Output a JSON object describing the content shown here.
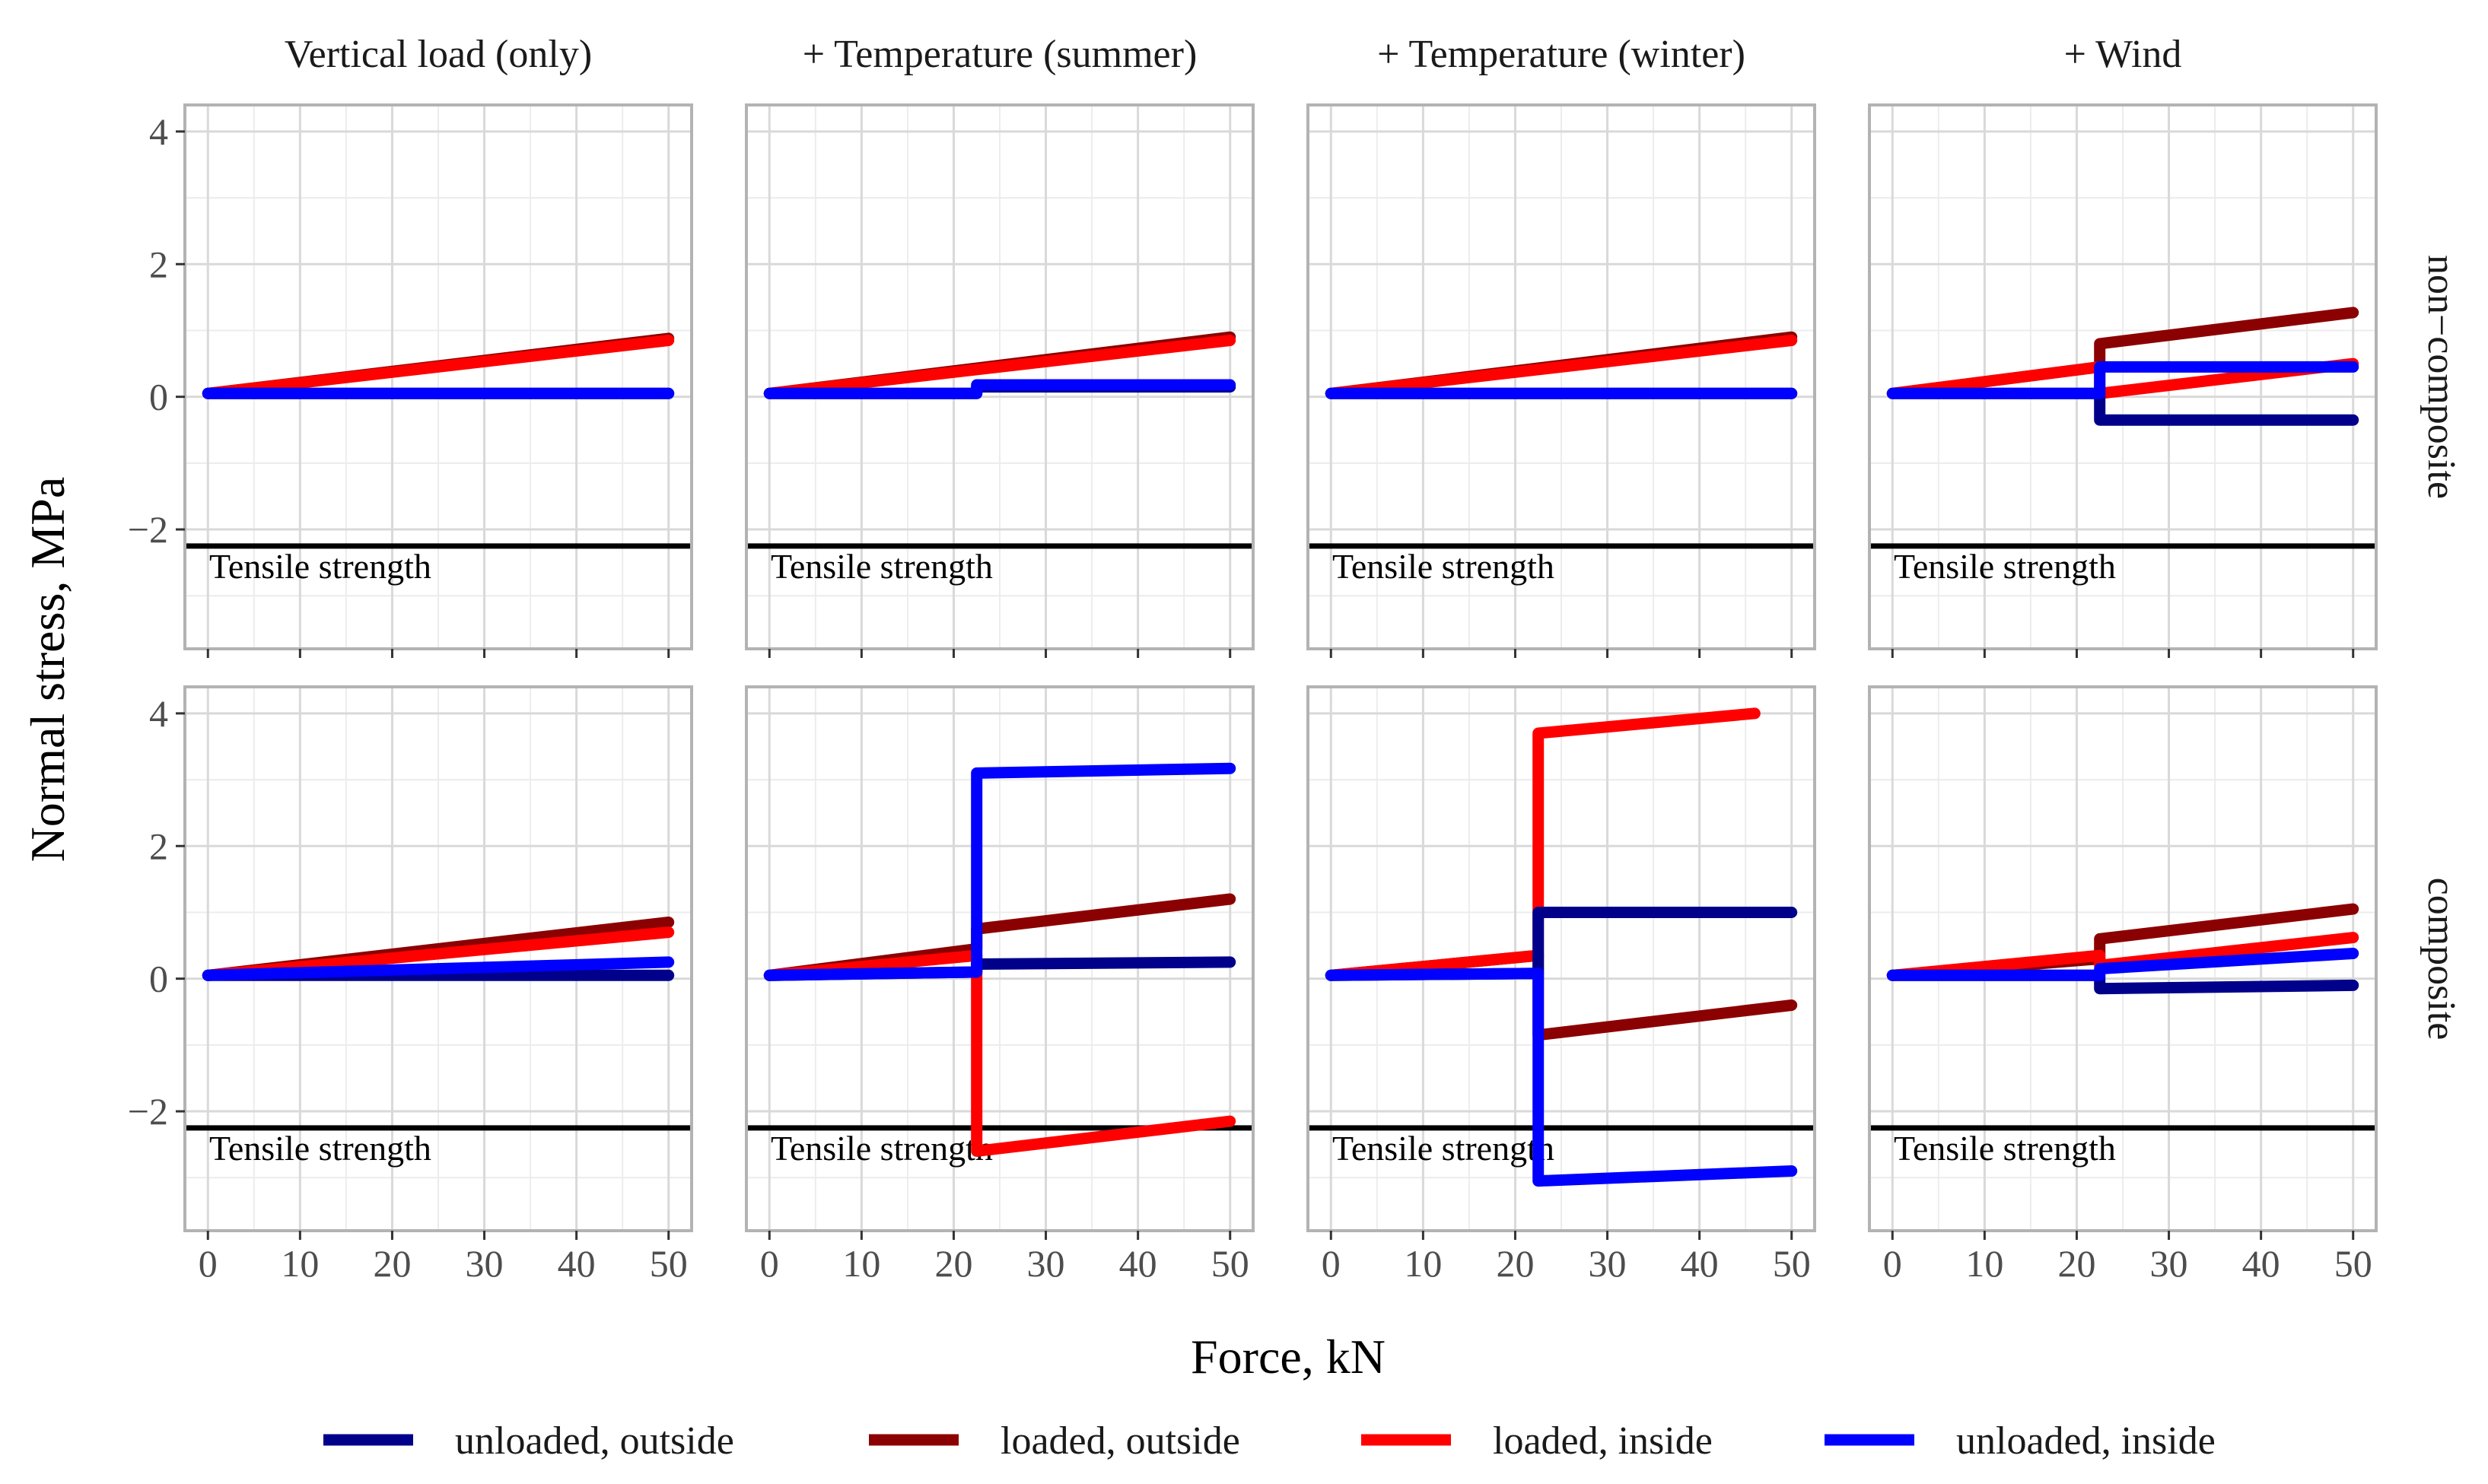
{
  "chart_data": {
    "type": "line",
    "title": "",
    "xlabel": "Force, kN",
    "ylabel": "Normal stress, MPa",
    "xlim": [
      -2.5,
      52.5
    ],
    "ylim": [
      -3.8,
      4.4
    ],
    "x_ticks": [
      0,
      10,
      20,
      30,
      40,
      50
    ],
    "y_ticks": [
      -2,
      0,
      2,
      4
    ],
    "x_tick_labels": [
      "0",
      "10",
      "20",
      "30",
      "40",
      "50"
    ],
    "y_tick_labels": [
      "−2",
      "0",
      "2",
      "4"
    ],
    "grid": true,
    "legend_position": "bottom",
    "columns": [
      "Vertical load (only)",
      "+ Temperature (summer)",
      "+ Temperature (winter)",
      "+ Wind"
    ],
    "rows": [
      "non−composite",
      "composite"
    ],
    "reference_line": {
      "y": -2.25,
      "label": "Tensile strength"
    },
    "legend": [
      {
        "key": "uo",
        "label": "unloaded, outside",
        "color": "#00008B"
      },
      {
        "key": "lo",
        "label": "loaded, outside",
        "color": "#8B0000"
      },
      {
        "key": "li",
        "label": "loaded, inside",
        "color": "#FF0000"
      },
      {
        "key": "ui",
        "label": "unloaded, inside",
        "color": "#0000FF"
      }
    ],
    "panels": [
      {
        "row": 0,
        "col": 0,
        "series": [
          {
            "key": "lo",
            "points": [
              [
                0,
                0.05
              ],
              [
                50,
                0.88
              ]
            ]
          },
          {
            "key": "li",
            "points": [
              [
                0,
                0.05
              ],
              [
                50,
                0.85
              ]
            ]
          },
          {
            "key": "uo",
            "points": [
              [
                0,
                0.05
              ],
              [
                50,
                0.05
              ]
            ]
          },
          {
            "key": "ui",
            "points": [
              [
                0,
                0.05
              ],
              [
                50,
                0.05
              ]
            ]
          }
        ]
      },
      {
        "row": 0,
        "col": 1,
        "series": [
          {
            "key": "lo",
            "points": [
              [
                0,
                0.05
              ],
              [
                50,
                0.9
              ]
            ]
          },
          {
            "key": "li",
            "points": [
              [
                0,
                0.05
              ],
              [
                50,
                0.85
              ]
            ]
          },
          {
            "key": "uo",
            "points": [
              [
                0,
                0.05
              ],
              [
                22.5,
                0.05
              ],
              [
                22.5,
                0.15
              ],
              [
                50,
                0.15
              ]
            ]
          },
          {
            "key": "ui",
            "points": [
              [
                0,
                0.05
              ],
              [
                22.5,
                0.05
              ],
              [
                22.5,
                0.18
              ],
              [
                50,
                0.18
              ]
            ]
          }
        ]
      },
      {
        "row": 0,
        "col": 2,
        "series": [
          {
            "key": "lo",
            "points": [
              [
                0,
                0.05
              ],
              [
                50,
                0.9
              ]
            ]
          },
          {
            "key": "li",
            "points": [
              [
                0,
                0.05
              ],
              [
                50,
                0.85
              ]
            ]
          },
          {
            "key": "uo",
            "points": [
              [
                0,
                0.05
              ],
              [
                50,
                0.05
              ]
            ]
          },
          {
            "key": "ui",
            "points": [
              [
                0,
                0.05
              ],
              [
                50,
                0.05
              ]
            ]
          }
        ]
      },
      {
        "row": 0,
        "col": 3,
        "series": [
          {
            "key": "lo",
            "points": [
              [
                0,
                0.05
              ],
              [
                22.5,
                0.45
              ],
              [
                22.5,
                0.8
              ],
              [
                50,
                1.27
              ]
            ]
          },
          {
            "key": "li",
            "points": [
              [
                0,
                0.05
              ],
              [
                22.5,
                0.45
              ],
              [
                22.5,
                0.05
              ],
              [
                50,
                0.5
              ]
            ]
          },
          {
            "key": "uo",
            "points": [
              [
                0,
                0.05
              ],
              [
                22.5,
                0.05
              ],
              [
                22.5,
                -0.35
              ],
              [
                50,
                -0.35
              ]
            ]
          },
          {
            "key": "ui",
            "points": [
              [
                0,
                0.05
              ],
              [
                22.5,
                0.05
              ],
              [
                22.5,
                0.45
              ],
              [
                50,
                0.45
              ]
            ]
          }
        ]
      },
      {
        "row": 1,
        "col": 0,
        "series": [
          {
            "key": "lo",
            "points": [
              [
                0,
                0.05
              ],
              [
                50,
                0.85
              ]
            ]
          },
          {
            "key": "li",
            "points": [
              [
                0,
                0.05
              ],
              [
                50,
                0.7
              ]
            ]
          },
          {
            "key": "uo",
            "points": [
              [
                0,
                0.05
              ],
              [
                50,
                0.05
              ]
            ]
          },
          {
            "key": "ui",
            "points": [
              [
                0,
                0.05
              ],
              [
                50,
                0.25
              ]
            ]
          }
        ]
      },
      {
        "row": 1,
        "col": 1,
        "series": [
          {
            "key": "lo",
            "points": [
              [
                0,
                0.05
              ],
              [
                22.5,
                0.45
              ],
              [
                22.5,
                0.75
              ],
              [
                50,
                1.2
              ]
            ]
          },
          {
            "key": "li",
            "points": [
              [
                0,
                0.05
              ],
              [
                22.5,
                0.35
              ],
              [
                22.5,
                -2.6
              ],
              [
                50,
                -2.15
              ]
            ]
          },
          {
            "key": "uo",
            "points": [
              [
                0,
                0.05
              ],
              [
                22.5,
                0.1
              ],
              [
                22.5,
                0.22
              ],
              [
                50,
                0.25
              ]
            ]
          },
          {
            "key": "ui",
            "points": [
              [
                0,
                0.05
              ],
              [
                22.5,
                0.1
              ],
              [
                22.5,
                3.1
              ],
              [
                50,
                3.17
              ]
            ]
          }
        ]
      },
      {
        "row": 1,
        "col": 2,
        "series": [
          {
            "key": "lo",
            "points": [
              [
                0,
                0.05
              ],
              [
                22.5,
                0.35
              ],
              [
                22.5,
                -0.85
              ],
              [
                50,
                -0.4
              ]
            ]
          },
          {
            "key": "li",
            "points": [
              [
                0,
                0.05
              ],
              [
                22.5,
                0.35
              ],
              [
                22.5,
                3.7
              ],
              [
                46,
                4.0
              ]
            ]
          },
          {
            "key": "uo",
            "points": [
              [
                0,
                0.05
              ],
              [
                22.5,
                0.08
              ],
              [
                22.5,
                1.0
              ],
              [
                50,
                1.0
              ]
            ]
          },
          {
            "key": "ui",
            "points": [
              [
                0,
                0.05
              ],
              [
                22.5,
                0.08
              ],
              [
                22.5,
                -3.05
              ],
              [
                50,
                -2.9
              ]
            ]
          }
        ]
      },
      {
        "row": 1,
        "col": 3,
        "series": [
          {
            "key": "lo",
            "points": [
              [
                0,
                0.05
              ],
              [
                22.5,
                0.3
              ],
              [
                22.5,
                0.6
              ],
              [
                50,
                1.05
              ]
            ]
          },
          {
            "key": "li",
            "points": [
              [
                0,
                0.05
              ],
              [
                22.5,
                0.35
              ],
              [
                22.5,
                0.2
              ],
              [
                50,
                0.62
              ]
            ]
          },
          {
            "key": "uo",
            "points": [
              [
                0,
                0.05
              ],
              [
                22.5,
                0.05
              ],
              [
                22.5,
                -0.15
              ],
              [
                50,
                -0.1
              ]
            ]
          },
          {
            "key": "ui",
            "points": [
              [
                0,
                0.05
              ],
              [
                22.5,
                0.05
              ],
              [
                22.5,
                0.15
              ],
              [
                50,
                0.38
              ]
            ]
          }
        ]
      }
    ]
  }
}
